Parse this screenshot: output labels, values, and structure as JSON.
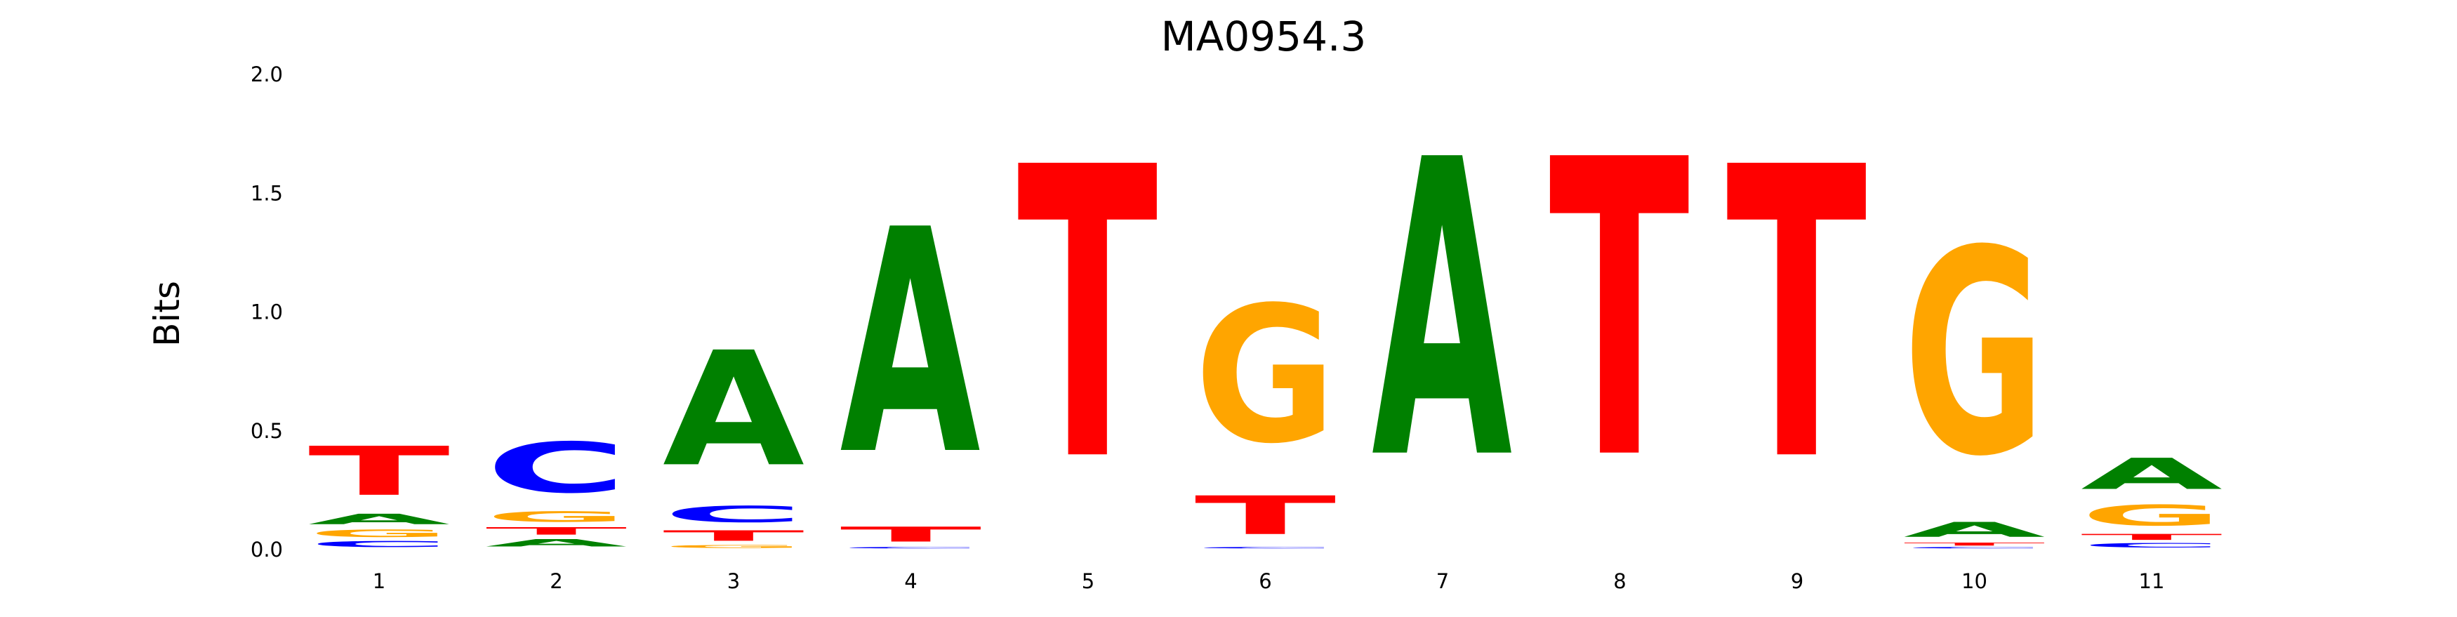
{
  "chart_data": {
    "type": "sequence-logo",
    "title": "MA0954.3",
    "xlabel": "",
    "ylabel": "Bits",
    "ylim": [
      0,
      2.0
    ],
    "yticks": [
      "0.0",
      "0.5",
      "1.0",
      "1.5",
      "2.0"
    ],
    "grid": false,
    "colors": {
      "A": "#008000",
      "C": "#0000ff",
      "G": "#ffa500",
      "T": "#ff0000"
    },
    "positions": [
      {
        "label": "1",
        "stack": [
          {
            "base": "C",
            "bits": 0.04
          },
          {
            "base": "G",
            "bits": 0.05
          },
          {
            "base": "A",
            "bits": 0.07
          },
          {
            "base": "T",
            "bits": 0.33
          }
        ]
      },
      {
        "label": "2",
        "stack": [
          {
            "base": "A",
            "bits": 0.05
          },
          {
            "base": "T",
            "bits": 0.05
          },
          {
            "base": "G",
            "bits": 0.07
          },
          {
            "base": "C",
            "bits": 0.34
          }
        ]
      },
      {
        "label": "3",
        "stack": [
          {
            "base": "G",
            "bits": 0.02
          },
          {
            "base": "T",
            "bits": 0.07
          },
          {
            "base": "C",
            "bits": 0.11
          },
          {
            "base": "A",
            "bits": 0.77
          }
        ]
      },
      {
        "label": "4",
        "stack": [
          {
            "base": "C",
            "bits": 0.01
          },
          {
            "base": "T",
            "bits": 0.1
          },
          {
            "base": "A",
            "bits": 1.51
          }
        ]
      },
      {
        "label": "5",
        "stack": [
          {
            "base": "T",
            "bits": 1.96
          }
        ]
      },
      {
        "label": "6",
        "stack": [
          {
            "base": "C",
            "bits": 0.01
          },
          {
            "base": "T",
            "bits": 0.26
          },
          {
            "base": "G",
            "bits": 0.92
          }
        ]
      },
      {
        "label": "7",
        "stack": [
          {
            "base": "A",
            "bits": 2.0
          }
        ]
      },
      {
        "label": "8",
        "stack": [
          {
            "base": "T",
            "bits": 2.0
          }
        ]
      },
      {
        "label": "9",
        "stack": [
          {
            "base": "T",
            "bits": 1.96
          }
        ]
      },
      {
        "label": "10",
        "stack": [
          {
            "base": "C",
            "bits": 0.01
          },
          {
            "base": "T",
            "bits": 0.02
          },
          {
            "base": "A",
            "bits": 0.1
          },
          {
            "base": "G",
            "bits": 1.38
          }
        ]
      },
      {
        "label": "11",
        "stack": [
          {
            "base": "C",
            "bits": 0.03
          },
          {
            "base": "T",
            "bits": 0.04
          },
          {
            "base": "G",
            "bits": 0.14
          },
          {
            "base": "A",
            "bits": 0.21
          }
        ]
      }
    ]
  }
}
